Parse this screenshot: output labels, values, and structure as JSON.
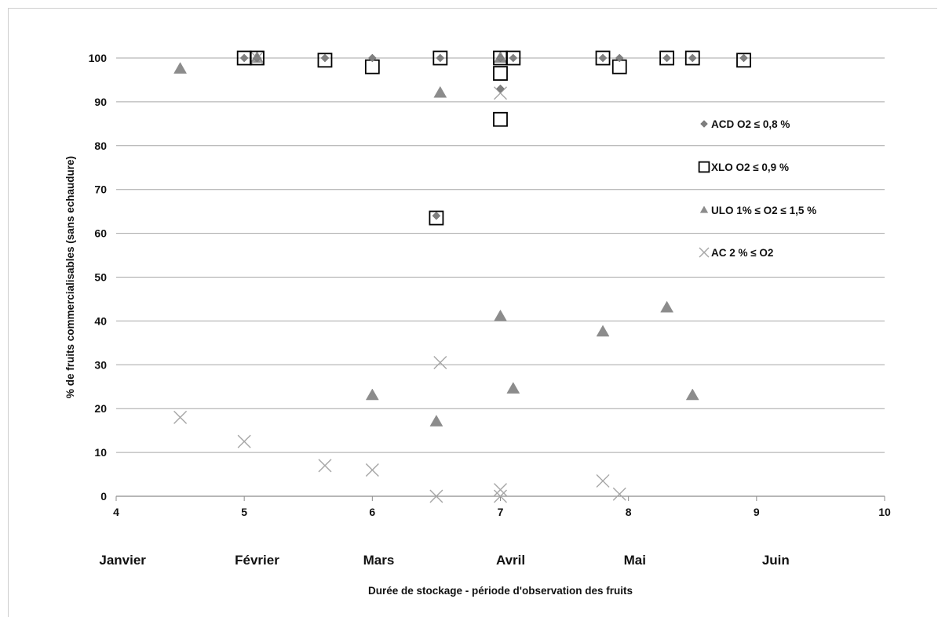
{
  "chart_data": {
    "type": "scatter",
    "xlabel": "Durée de stockage - période d'observation des fruits",
    "ylabel": "% de fruits commercialisables (sans echaudure)",
    "xlim": [
      4,
      10
    ],
    "ylim": [
      0,
      100
    ],
    "xticks": [
      4,
      5,
      6,
      7,
      8,
      9,
      10
    ],
    "yticks": [
      0,
      10,
      20,
      30,
      40,
      50,
      60,
      70,
      80,
      90,
      100
    ],
    "grid": "horizontal",
    "legend_position": "right",
    "month_labels": [
      {
        "label": "Janvier",
        "x": 4.05
      },
      {
        "label": "Février",
        "x": 5.1
      },
      {
        "label": "Mars",
        "x": 6.05
      },
      {
        "label": "Avril",
        "x": 7.08
      },
      {
        "label": "Mai",
        "x": 8.05
      },
      {
        "label": "Juin",
        "x": 9.15
      }
    ],
    "series": [
      {
        "name": "ACD  O2 ≤ 0,8 %",
        "marker": "diamond",
        "color": "#7f7f7f",
        "points": [
          [
            5.0,
            100
          ],
          [
            5.1,
            100
          ],
          [
            5.63,
            100
          ],
          [
            6.0,
            100
          ],
          [
            6.5,
            64
          ],
          [
            6.53,
            100
          ],
          [
            7.0,
            93
          ],
          [
            7.0,
            100
          ],
          [
            7.1,
            100
          ],
          [
            7.8,
            100
          ],
          [
            7.93,
            100
          ],
          [
            8.3,
            100
          ],
          [
            8.5,
            100
          ],
          [
            8.9,
            100
          ]
        ]
      },
      {
        "name": "XLO  O2 ≤ 0,9 %",
        "marker": "square",
        "color": "#000000",
        "points": [
          [
            5.0,
            100
          ],
          [
            5.1,
            100
          ],
          [
            5.63,
            99.5
          ],
          [
            6.0,
            98
          ],
          [
            6.5,
            63.5
          ],
          [
            6.53,
            100
          ],
          [
            7.0,
            86
          ],
          [
            7.0,
            96.5
          ],
          [
            7.0,
            100
          ],
          [
            7.1,
            100
          ],
          [
            7.8,
            100
          ],
          [
            7.93,
            98
          ],
          [
            8.3,
            100
          ],
          [
            8.5,
            100
          ],
          [
            8.9,
            99.5
          ]
        ]
      },
      {
        "name": "ULO  1% ≤ O2 ≤ 1,5 %",
        "marker": "triangle",
        "color": "#8c8c8c",
        "points": [
          [
            4.5,
            97.5
          ],
          [
            5.1,
            100
          ],
          [
            6.0,
            23
          ],
          [
            6.5,
            17
          ],
          [
            6.53,
            92
          ],
          [
            7.0,
            41
          ],
          [
            7.0,
            100
          ],
          [
            7.1,
            24.5
          ],
          [
            7.8,
            37.5
          ],
          [
            8.3,
            43
          ],
          [
            8.5,
            23
          ]
        ]
      },
      {
        "name": "AC   2 % ≤ O2",
        "marker": "cross",
        "color": "#a6a6a6",
        "points": [
          [
            4.5,
            18
          ],
          [
            5.0,
            12.5
          ],
          [
            5.1,
            100
          ],
          [
            5.63,
            7
          ],
          [
            6.0,
            6
          ],
          [
            6.5,
            0
          ],
          [
            6.53,
            30.5
          ],
          [
            7.0,
            0
          ],
          [
            7.0,
            1.5
          ],
          [
            7.0,
            92
          ],
          [
            7.8,
            3.5
          ],
          [
            7.93,
            0.5
          ]
        ]
      }
    ]
  }
}
